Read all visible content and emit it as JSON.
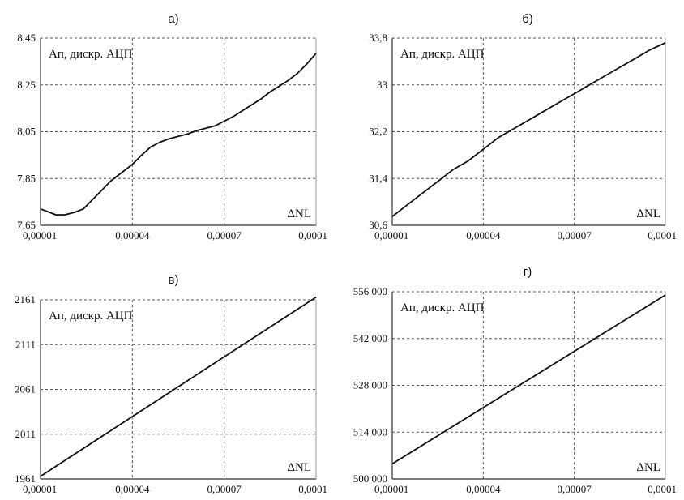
{
  "chart_data": [
    {
      "type": "line",
      "panel_label": "а)",
      "annotation_label": "Ап, дискр. АЦП",
      "xlabel": "ΔNL",
      "xlim": [
        1e-05,
        0.0001
      ],
      "ylim": [
        7.65,
        8.45
      ],
      "x_ticks": [
        "0,00001",
        "0,00004",
        "0,00007",
        "0,0001"
      ],
      "y_ticks": [
        "7,65",
        "7,85",
        "8,05",
        "8,25",
        "8,45"
      ],
      "series": [
        {
          "x": [
            1e-05,
            1.2e-05,
            1.5e-05,
            1.8e-05,
            2.1e-05,
            2.4e-05,
            2.7e-05,
            3e-05,
            3.3e-05,
            3.6e-05,
            4e-05,
            4.3e-05,
            4.6e-05,
            4.9e-05,
            5.2e-05,
            5.5e-05,
            5.8e-05,
            6.1e-05,
            6.4e-05,
            6.7e-05,
            7e-05,
            7.3e-05,
            7.6e-05,
            7.9e-05,
            8.2e-05,
            8.5e-05,
            8.8e-05,
            9.1e-05,
            9.4e-05,
            9.7e-05,
            0.0001
          ],
          "y": [
            7.72,
            7.71,
            7.695,
            7.695,
            7.705,
            7.72,
            7.76,
            7.8,
            7.84,
            7.87,
            7.91,
            7.95,
            7.985,
            8.005,
            8.02,
            8.03,
            8.04,
            8.055,
            8.065,
            8.075,
            8.095,
            8.115,
            8.14,
            8.165,
            8.19,
            8.22,
            8.245,
            8.27,
            8.3,
            8.34,
            8.385
          ]
        }
      ]
    },
    {
      "type": "line",
      "panel_label": "б)",
      "annotation_label": "Ап, дискр. АЦП",
      "xlabel": "ΔNL",
      "xlim": [
        1e-05,
        0.0001
      ],
      "ylim": [
        30.6,
        33.8
      ],
      "x_ticks": [
        "0,00001",
        "0,00004",
        "0,00007",
        "0,0001"
      ],
      "y_ticks": [
        "30,6",
        "31,4",
        "32,2",
        "33",
        "33,8"
      ],
      "series": [
        {
          "x": [
            1e-05,
            1.5e-05,
            2e-05,
            2.5e-05,
            3e-05,
            3.5e-05,
            4e-05,
            4.5e-05,
            5e-05,
            5.5e-05,
            6e-05,
            6.5e-05,
            7e-05,
            7.5e-05,
            8e-05,
            8.5e-05,
            9e-05,
            9.5e-05,
            0.0001
          ],
          "y": [
            30.75,
            30.95,
            31.15,
            31.35,
            31.55,
            31.7,
            31.9,
            32.1,
            32.25,
            32.4,
            32.55,
            32.7,
            32.85,
            33.0,
            33.15,
            33.3,
            33.45,
            33.6,
            33.72
          ]
        }
      ]
    },
    {
      "type": "line",
      "panel_label": "в)",
      "annotation_label": "Ап, дискр. АЦП",
      "xlabel": "ΔNL",
      "xlim": [
        1e-05,
        0.0001
      ],
      "ylim": [
        1961,
        2161
      ],
      "x_ticks": [
        "0,00001",
        "0,00004",
        "0,00007",
        "0,0001"
      ],
      "y_ticks": [
        "1961",
        "2011",
        "2061",
        "2111",
        "2161"
      ],
      "series": [
        {
          "x": [
            1e-05,
            0.0001
          ],
          "y": [
            1964,
            2164
          ]
        }
      ]
    },
    {
      "type": "line",
      "panel_label": "г)",
      "annotation_label": "Ап, дискр. АЦП",
      "xlabel": "ΔNL",
      "xlim": [
        1e-05,
        0.0001
      ],
      "ylim": [
        500000,
        556000
      ],
      "x_ticks": [
        "0,00001",
        "0,00004",
        "0,00007",
        "0,0001"
      ],
      "y_ticks": [
        "500 000",
        "514 000",
        "528 000",
        "542 000",
        "556 000"
      ],
      "series": [
        {
          "x": [
            1e-05,
            0.0001
          ],
          "y": [
            504500,
            555000
          ]
        }
      ]
    }
  ]
}
